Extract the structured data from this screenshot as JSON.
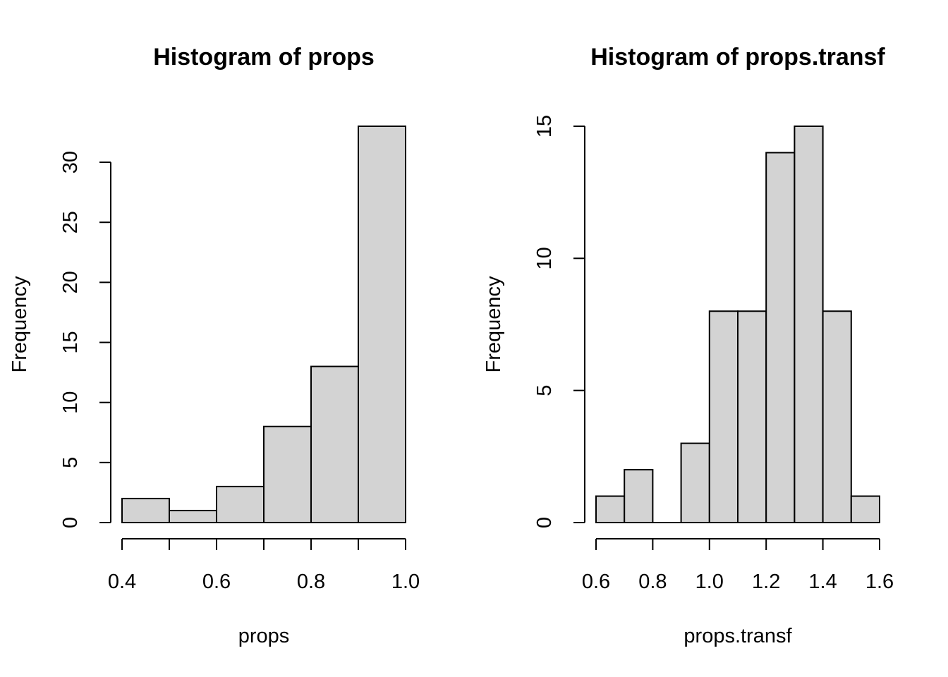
{
  "chart_data": [
    {
      "type": "bar",
      "title": "Histogram of props",
      "xlabel": "props",
      "ylabel": "Frequency",
      "bins": [
        {
          "from": 0.4,
          "to": 0.5,
          "count": 2
        },
        {
          "from": 0.5,
          "to": 0.6,
          "count": 1
        },
        {
          "from": 0.6,
          "to": 0.7,
          "count": 3
        },
        {
          "from": 0.7,
          "to": 0.8,
          "count": 8
        },
        {
          "from": 0.8,
          "to": 0.9,
          "count": 13
        },
        {
          "from": 0.9,
          "to": 1.0,
          "count": 33
        }
      ],
      "xlim": [
        0.4,
        1.0
      ],
      "ylim": [
        0,
        33
      ],
      "x_ticks": [
        0.4,
        0.5,
        0.6,
        0.7,
        0.8,
        0.9,
        1.0
      ],
      "x_tick_labels": [
        "0.4",
        "",
        "0.6",
        "",
        "0.8",
        "",
        "1.0"
      ],
      "y_ticks": [
        0,
        5,
        10,
        15,
        20,
        25,
        30
      ],
      "y_tick_labels": [
        "0",
        "5",
        "10",
        "15",
        "20",
        "25",
        "30"
      ],
      "grid": false
    },
    {
      "type": "bar",
      "title": "Histogram of props.transf",
      "xlabel": "props.transf",
      "ylabel": "Frequency",
      "bins": [
        {
          "from": 0.6,
          "to": 0.7,
          "count": 1
        },
        {
          "from": 0.7,
          "to": 0.8,
          "count": 2
        },
        {
          "from": 0.8,
          "to": 0.9,
          "count": 0
        },
        {
          "from": 0.9,
          "to": 1.0,
          "count": 3
        },
        {
          "from": 1.0,
          "to": 1.1,
          "count": 8
        },
        {
          "from": 1.1,
          "to": 1.2,
          "count": 8
        },
        {
          "from": 1.2,
          "to": 1.3,
          "count": 14
        },
        {
          "from": 1.3,
          "to": 1.4,
          "count": 15
        },
        {
          "from": 1.4,
          "to": 1.5,
          "count": 8
        },
        {
          "from": 1.5,
          "to": 1.6,
          "count": 1
        }
      ],
      "xlim": [
        0.6,
        1.6
      ],
      "ylim": [
        0,
        15
      ],
      "x_ticks": [
        0.6,
        0.8,
        1.0,
        1.2,
        1.4,
        1.6
      ],
      "x_tick_labels": [
        "0.6",
        "0.8",
        "1.0",
        "1.2",
        "1.4",
        "1.6"
      ],
      "y_ticks": [
        0,
        5,
        10,
        15
      ],
      "y_tick_labels": [
        "0",
        "5",
        "10",
        "15"
      ],
      "grid": false
    }
  ]
}
